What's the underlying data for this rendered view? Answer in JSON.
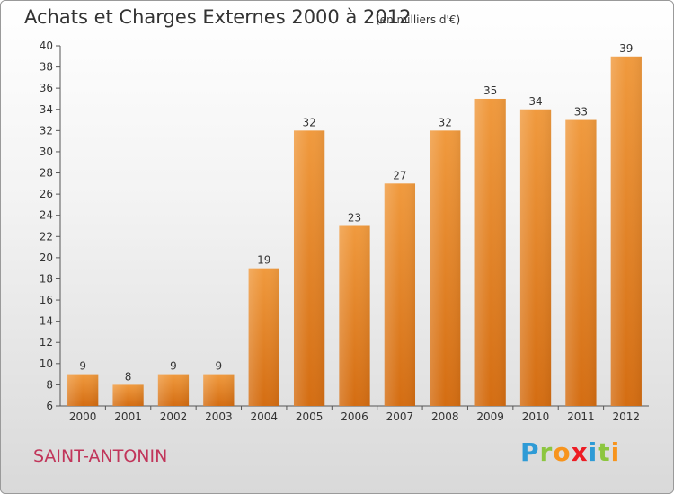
{
  "header": {
    "title": "Achats et Charges Externes 2000 à 2012",
    "subtitle": "(en milliers d'€)"
  },
  "footer": {
    "place_name": "SAINT-ANTONIN",
    "brand_letters": [
      "P",
      "r",
      "o",
      "x",
      "i",
      "t",
      "i"
    ],
    "brand_colors": [
      "#2e9bd6",
      "#8cc63f",
      "#f7941d",
      "#ed1c24",
      "#2e9bd6",
      "#8cc63f",
      "#f7941d"
    ]
  },
  "chart_data": {
    "type": "bar",
    "title": "Achats et Charges Externes 2000 à 2012",
    "subtitle": "(en milliers d'€)",
    "categories": [
      "2000",
      "2001",
      "2002",
      "2003",
      "2004",
      "2005",
      "2006",
      "2007",
      "2008",
      "2009",
      "2010",
      "2011",
      "2012"
    ],
    "values": [
      9,
      8,
      9,
      9,
      19,
      32,
      23,
      27,
      32,
      35,
      34,
      33,
      39
    ],
    "ylim": [
      6,
      40
    ],
    "y_ticks": [
      6,
      8,
      10,
      12,
      14,
      16,
      18,
      20,
      22,
      24,
      26,
      28,
      30,
      32,
      34,
      36,
      38,
      40
    ],
    "grid": false,
    "legend": "none",
    "bar_color": "#f09a3e",
    "bar_color_dark": "#d46d12"
  }
}
